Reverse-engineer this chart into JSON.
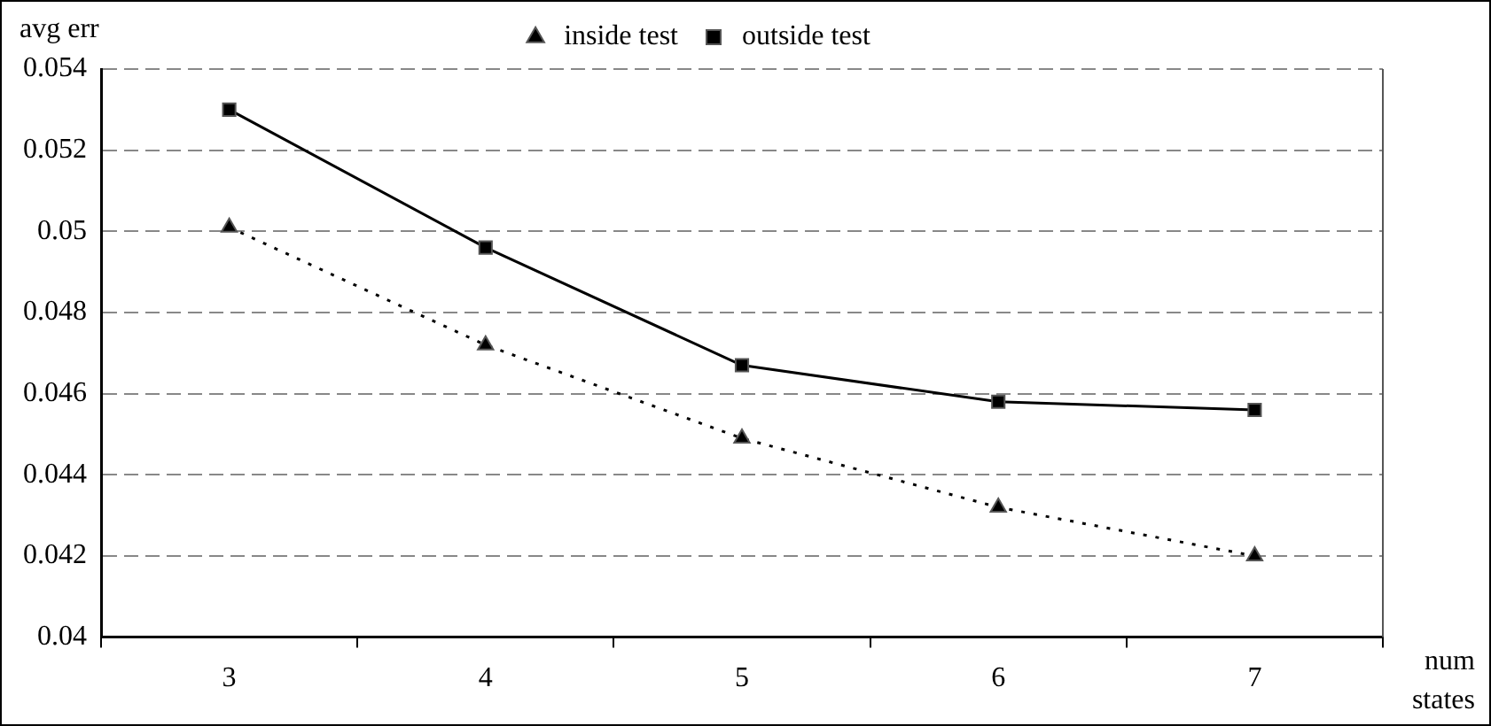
{
  "chart_data": {
    "type": "line",
    "xlabel": "num states",
    "ylabel": "avg err",
    "categories": [
      "3",
      "4",
      "5",
      "6",
      "7"
    ],
    "series": [
      {
        "name": "inside test",
        "color": "#000000",
        "values": [
          0.0501,
          0.0472,
          0.0449,
          0.0432,
          0.042
        ],
        "marker": "triangle",
        "line_style": "dotted"
      },
      {
        "name": "outside test",
        "color": "#000000",
        "values": [
          0.053,
          0.0496,
          0.0467,
          0.0458,
          0.0456
        ],
        "marker": "square",
        "line_style": "solid"
      }
    ],
    "ylim": [
      0.04,
      0.054
    ],
    "yticks": [
      0.04,
      0.042,
      0.044,
      0.046,
      0.048,
      0.05,
      0.052,
      0.054
    ],
    "grid": "y",
    "legend": "top"
  }
}
